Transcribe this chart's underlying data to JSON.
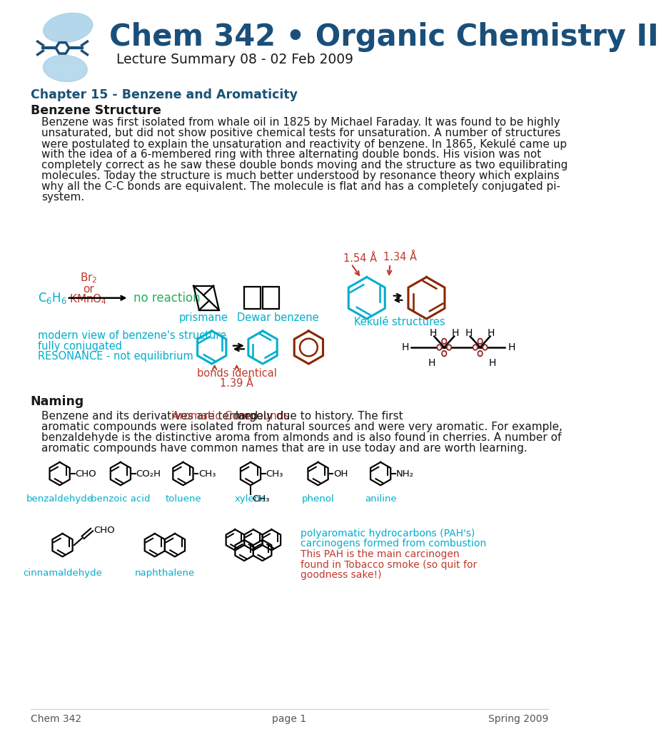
{
  "title_main": "Chem 342 • Organic Chemistry II",
  "title_sub": "Lecture Summary 08 - 02 Feb 2009",
  "chapter_heading": "Chapter 15 - Benzene and Aromaticity",
  "section1": "Benzene Structure",
  "para1_line1": "Benzene was first isolated from whale oil in 1825 by Michael Faraday. It was found to be highly",
  "para1_line2": "unsaturated, but did not show positive chemical tests for unsaturation. A number of structures",
  "para1_line3": "were postulated to explain the unsaturation and reactivity of benzene. In 1865, Kekulé came up",
  "para1_line4": "with the idea of a 6-membered ring with three alternating double bonds. His vision was not",
  "para1_line5": "completely correct as he saw these double bonds moving and the structure as two equilibrating",
  "para1_line6": "molecules. Today the structure is much better understood by resonance theory which explains",
  "para1_line7": "why all the C-C bonds are equivalent. The molecule is flat and has a completely conjugated pi-",
  "para1_line8": "system.",
  "section2": "Naming",
  "para2_line1_a": "Benzene and its derivatives are termed ",
  "para2_line1_b": "Aromatic Compounds",
  "para2_line1_c": " largely due to history. The first",
  "para2_line2": "aromatic compounds were isolated from natural sources and were very aromatic. For example,",
  "para2_line3": "benzaldehyde is the distinctive aroma from almonds and is also found in cherries. A number of",
  "para2_line4": "aromatic compounds have common names that are in use today and are worth learning.",
  "footer_left": "Chem 342",
  "footer_center": "page 1",
  "footer_right": "Spring 2009",
  "color_title": "#1a4f7a",
  "color_chapter": "#1a5276",
  "color_cyan": "#00aecc",
  "color_red": "#c0392b",
  "color_green": "#27ae60",
  "color_dark": "#1a1a1a",
  "color_gray": "#555555",
  "color_kekule_cyan": "#00aecc",
  "color_kekule_red": "#8B2500",
  "bg": "#ffffff"
}
